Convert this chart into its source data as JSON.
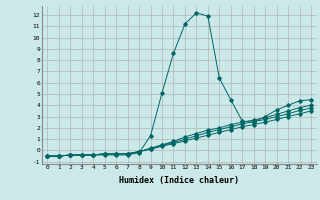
{
  "xlabel": "Humidex (Indice chaleur)",
  "background_color": "#cce9e9",
  "grid_color": "#aaaaaa",
  "line_color": "#006666",
  "xlim": [
    -0.5,
    23.5
  ],
  "ylim": [
    -1.2,
    12.8
  ],
  "xticks": [
    0,
    1,
    2,
    3,
    4,
    5,
    6,
    7,
    8,
    9,
    10,
    11,
    12,
    13,
    14,
    15,
    16,
    17,
    18,
    19,
    20,
    21,
    22,
    23
  ],
  "yticks": [
    -1,
    0,
    1,
    2,
    3,
    4,
    5,
    6,
    7,
    8,
    9,
    10,
    11,
    12
  ],
  "series": [
    [
      -0.5,
      -0.5,
      -0.4,
      -0.4,
      -0.4,
      -0.4,
      -0.4,
      -0.4,
      -0.2,
      1.3,
      5.1,
      8.6,
      11.2,
      12.2,
      11.9,
      6.4,
      4.5,
      2.6,
      2.5,
      3.0,
      3.6,
      4.0,
      4.4,
      4.5
    ],
    [
      -0.5,
      -0.5,
      -0.4,
      -0.4,
      -0.4,
      -0.3,
      -0.3,
      -0.3,
      -0.1,
      0.2,
      0.5,
      0.8,
      1.2,
      1.5,
      1.8,
      2.0,
      2.3,
      2.5,
      2.7,
      2.9,
      3.2,
      3.5,
      3.8,
      4.0
    ],
    [
      -0.5,
      -0.5,
      -0.4,
      -0.4,
      -0.4,
      -0.3,
      -0.3,
      -0.3,
      -0.1,
      0.15,
      0.45,
      0.7,
      1.0,
      1.3,
      1.6,
      1.85,
      2.1,
      2.35,
      2.55,
      2.75,
      3.0,
      3.25,
      3.55,
      3.75
    ],
    [
      -0.5,
      -0.5,
      -0.4,
      -0.4,
      -0.4,
      -0.3,
      -0.3,
      -0.3,
      -0.1,
      0.1,
      0.38,
      0.6,
      0.85,
      1.1,
      1.35,
      1.6,
      1.85,
      2.1,
      2.3,
      2.5,
      2.75,
      3.0,
      3.25,
      3.5
    ]
  ]
}
